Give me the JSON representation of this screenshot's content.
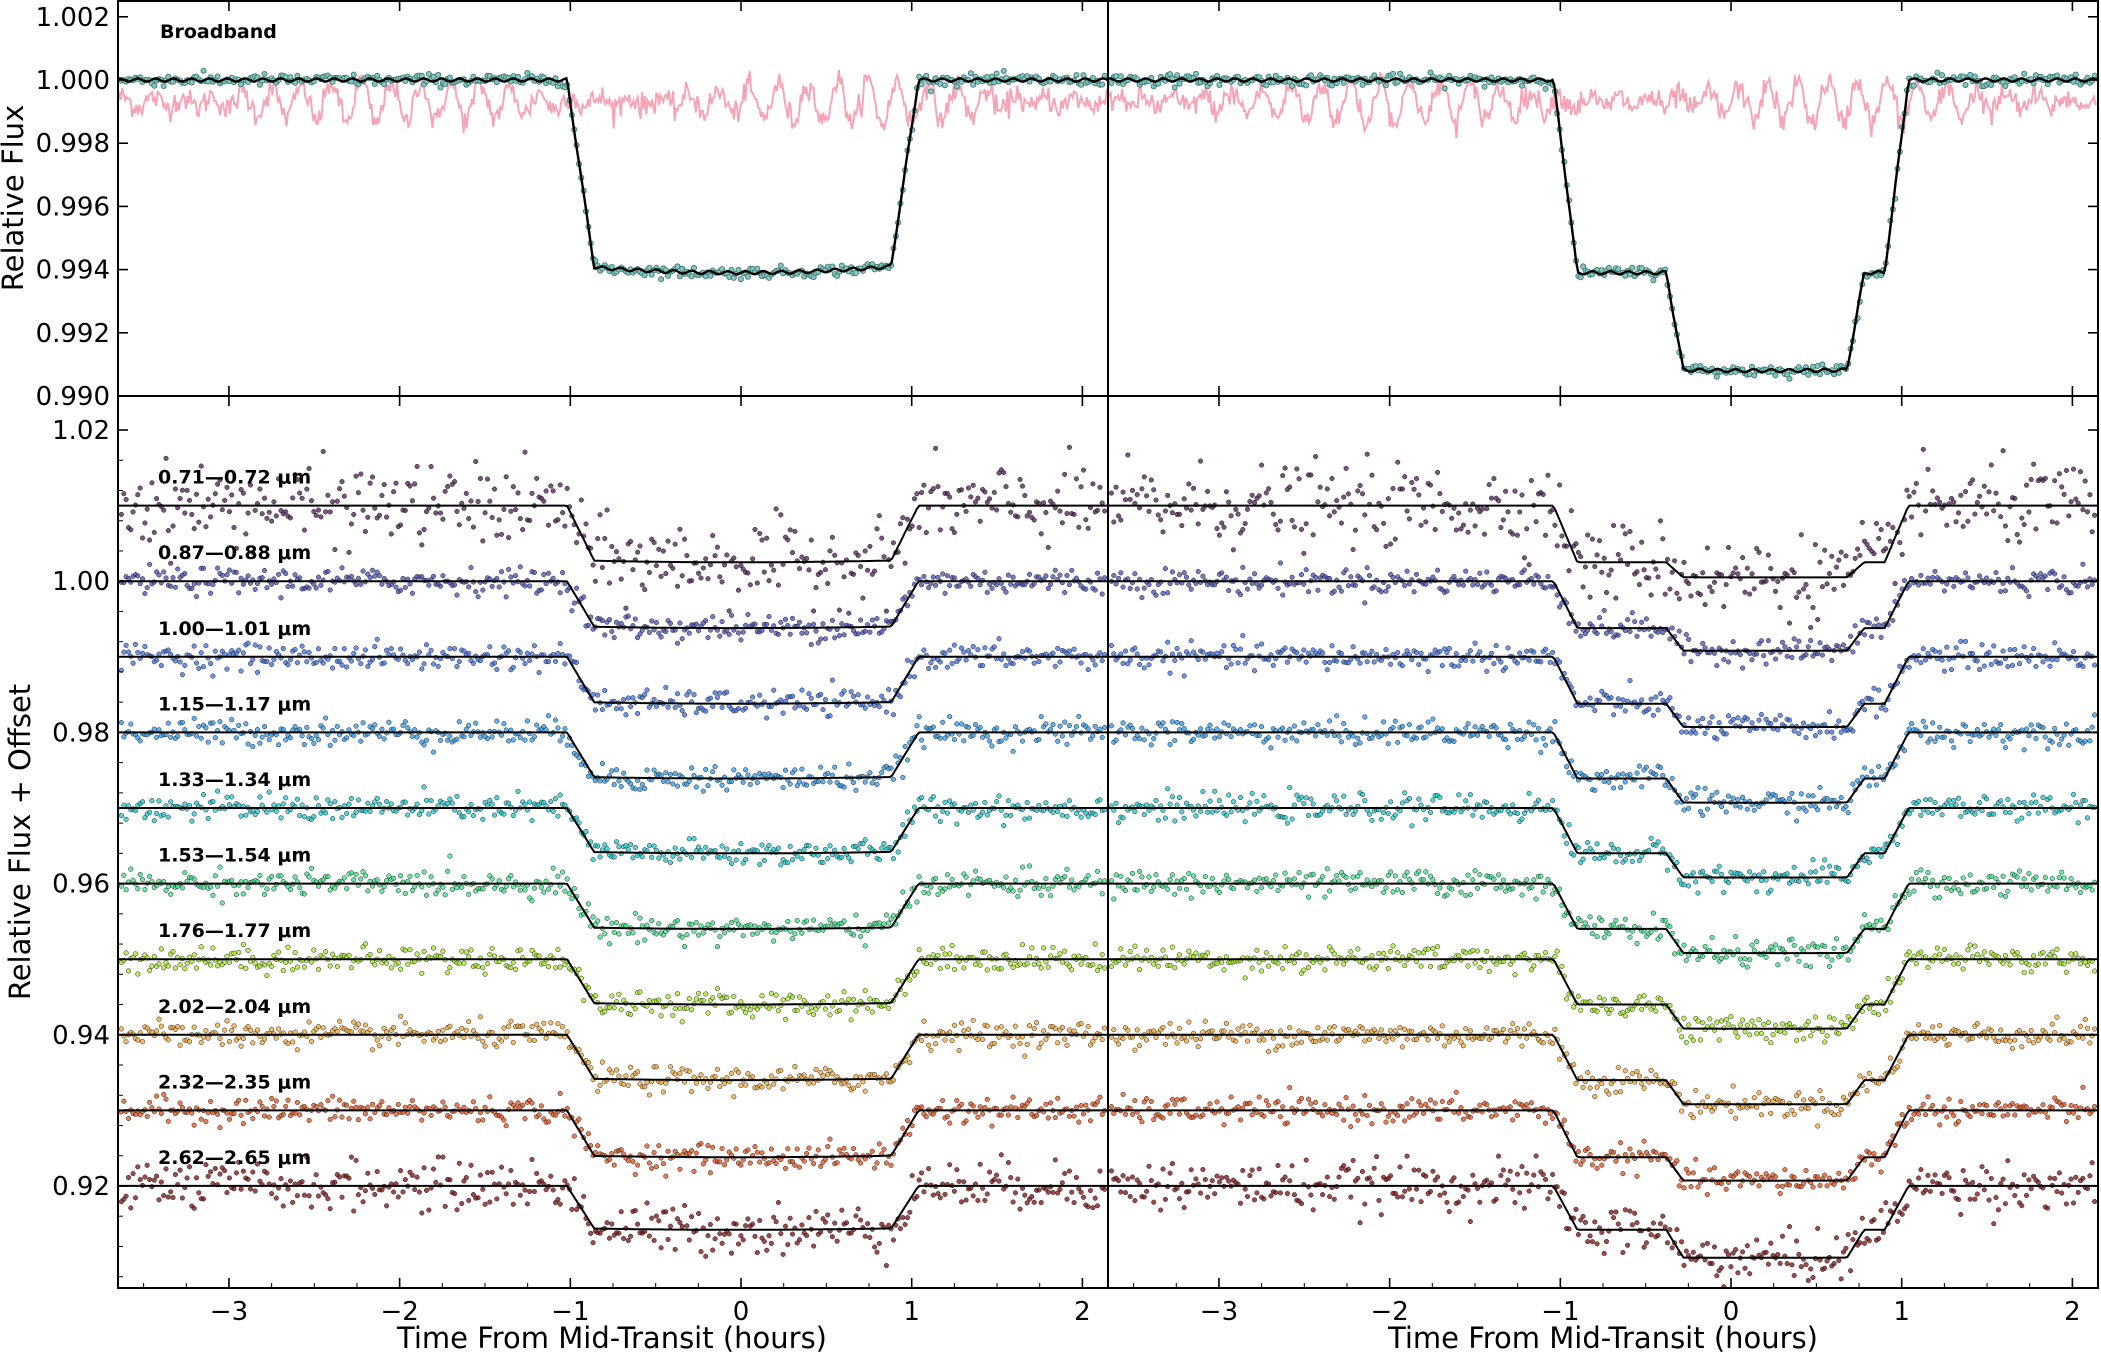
{
  "figure": {
    "top_ylabel": "Relative Flux",
    "bottom_ylabel": "Relative Flux + Offset",
    "xlabel_left": "Time From Mid-Transit (hours)",
    "xlabel_right": "Time From Mid-Transit (hours)",
    "broadband_label": "Broadband"
  },
  "chart_data": [
    {
      "type": "scatter",
      "panel": "top",
      "title": "",
      "label": "Broadband",
      "ylabel": "Relative Flux",
      "xlim": [
        -3.65,
        2.15
      ],
      "ylim": [
        0.99,
        1.0025
      ],
      "xticks": [
        -3,
        -2,
        -1,
        0,
        1,
        2
      ],
      "xtick_labels": [
        "−3",
        "−2",
        "−1",
        "0",
        "1",
        "2"
      ],
      "yticks": [
        0.99,
        0.992,
        0.994,
        0.996,
        0.998,
        1.0,
        1.002
      ],
      "ytick_labels": [
        "0.990",
        "0.992",
        "0.994",
        "0.996",
        "0.998",
        "1.000",
        "1.002"
      ],
      "grid": false,
      "colors": {
        "data": "#7fc7c0",
        "model": "#000000",
        "residual": "#f4a6b8"
      },
      "subplots": [
        {
          "name": "",
          "depth": 0.0061,
          "t1": -1.02,
          "t2": -0.86,
          "t3": 0.88,
          "t4": 1.04
        },
        {
          "name": "",
          "depth_a": 0.0061,
          "depth_b": 0.0092,
          "t1": -1.04,
          "t2": -0.9,
          "split_in": -0.32,
          "split_out": 0.72,
          "t3": 0.9,
          "t4": 1.04
        }
      ]
    },
    {
      "type": "scatter",
      "panel": "bottom",
      "title": "",
      "ylabel": "Relative Flux + Offset",
      "xlabel": "Time From Mid-Transit (hours)",
      "xlim": [
        -3.65,
        2.15
      ],
      "ylim": [
        0.9065,
        1.0245
      ],
      "xticks": [
        -3,
        -2,
        -1,
        0,
        1,
        2
      ],
      "xtick_labels": [
        "−3",
        "−2",
        "−1",
        "0",
        "1",
        "2"
      ],
      "yticks": [
        0.92,
        0.94,
        0.96,
        0.98,
        1.0,
        1.02
      ],
      "ytick_labels": [
        "0.92",
        "0.94",
        "0.96",
        "0.98",
        "1.00",
        "1.02"
      ],
      "grid": false,
      "series": [
        {
          "name": "0.71—0.72 μm",
          "baseline": 1.01,
          "depth_left": 0.0075,
          "depth_right": 0.0095,
          "color": "#4a1d4f"
        },
        {
          "name": "0.87—0.88 μm",
          "baseline": 1.0,
          "depth_left": 0.0062,
          "depth_right": 0.0092,
          "color": "#4a4fb3"
        },
        {
          "name": "1.00—1.01 μm",
          "baseline": 0.99,
          "depth_left": 0.0062,
          "depth_right": 0.0093,
          "color": "#3f6fe0"
        },
        {
          "name": "1.15—1.17 μm",
          "baseline": 0.98,
          "depth_left": 0.0061,
          "depth_right": 0.0093,
          "color": "#2f9ae8"
        },
        {
          "name": "1.33—1.34 μm",
          "baseline": 0.97,
          "depth_left": 0.006,
          "depth_right": 0.0092,
          "color": "#1cc8cc"
        },
        {
          "name": "1.53—1.54 μm",
          "baseline": 0.96,
          "depth_left": 0.006,
          "depth_right": 0.0092,
          "color": "#3de08a"
        },
        {
          "name": "1.76—1.77 μm",
          "baseline": 0.95,
          "depth_left": 0.006,
          "depth_right": 0.0092,
          "color": "#a6e82a"
        },
        {
          "name": "2.02—2.04 μm",
          "baseline": 0.94,
          "depth_left": 0.006,
          "depth_right": 0.0092,
          "color": "#f0a83a"
        },
        {
          "name": "2.32—2.35 μm",
          "baseline": 0.93,
          "depth_left": 0.0062,
          "depth_right": 0.0093,
          "color": "#e0521c"
        },
        {
          "name": "2.62—2.65 μm",
          "baseline": 0.92,
          "depth_left": 0.0058,
          "depth_right": 0.0095,
          "color": "#7a0f0f"
        }
      ]
    }
  ]
}
